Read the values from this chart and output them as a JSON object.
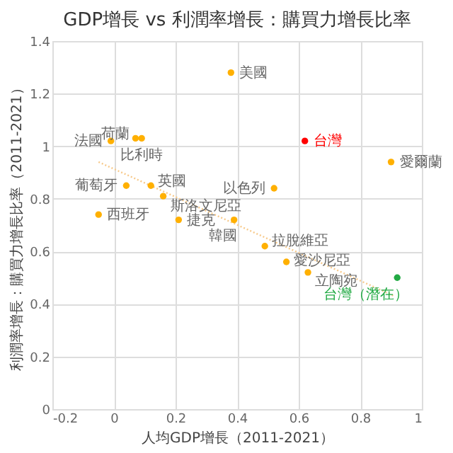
{
  "chart_data": {
    "type": "scatter",
    "title": "GDP增長 vs 利潤率增長：購買力增長比率",
    "xlabel": "人均GDP增長（2011-2021）",
    "ylabel": "利潤率增長：購買力增長比率（2011-2021）",
    "xlim": [
      -0.2,
      1
    ],
    "xticks": [
      -0.2,
      0,
      0.2,
      0.4,
      0.6,
      0.8,
      1
    ],
    "ylim": [
      0,
      1.4
    ],
    "yticks": [
      0,
      0.2,
      0.4,
      0.6,
      0.8,
      1,
      1.2,
      1.4
    ],
    "grid": true,
    "series": [
      {
        "color": "#ffb000",
        "marker": "circle",
        "x": [
          0.38,
          -0.01,
          0.07,
          0.09,
          0.04,
          0.12,
          0.16,
          -0.05,
          0.21,
          0.52,
          0.39,
          0.49,
          0.9,
          0.56,
          0.63
        ],
        "values": [
          1.28,
          1.02,
          1.03,
          1.03,
          0.85,
          0.85,
          0.81,
          0.74,
          0.72,
          0.84,
          0.72,
          0.62,
          0.94,
          0.56,
          0.52
        ]
      },
      {
        "color": "#ff0000",
        "marker": "circle",
        "x": [
          0.62
        ],
        "values": [
          1.02
        ]
      },
      {
        "color": "#22aa44",
        "marker": "circle",
        "x": [
          0.92
        ],
        "values": [
          0.5
        ]
      },
      {
        "type": "line",
        "color": "#f7c98a",
        "line_style": "dotted",
        "x": [
          -0.05,
          0.91
        ],
        "values": [
          0.94,
          0.43
        ]
      }
    ],
    "annotations": [
      {
        "text": "美國",
        "x": 0.38,
        "y": 1.28
      },
      {
        "text": "法國",
        "x": -0.01,
        "y": 1.02
      },
      {
        "text": "荷蘭",
        "x": 0.07,
        "y": 1.03
      },
      {
        "text": "比利時",
        "x": 0.09,
        "y": 1.03
      },
      {
        "text": "台灣",
        "x": 0.62,
        "y": 1.02
      },
      {
        "text": "葡萄牙",
        "x": 0.04,
        "y": 0.85
      },
      {
        "text": "英國",
        "x": 0.12,
        "y": 0.85
      },
      {
        "text": "斯洛文尼亞",
        "x": 0.16,
        "y": 0.81
      },
      {
        "text": "西班牙",
        "x": -0.05,
        "y": 0.74
      },
      {
        "text": "捷克",
        "x": 0.21,
        "y": 0.72
      },
      {
        "text": "以色列",
        "x": 0.52,
        "y": 0.84
      },
      {
        "text": "韓國",
        "x": 0.39,
        "y": 0.72
      },
      {
        "text": "拉脫維亞",
        "x": 0.49,
        "y": 0.62
      },
      {
        "text": "愛爾蘭",
        "x": 0.9,
        "y": 0.94
      },
      {
        "text": "愛沙尼亞",
        "x": 0.56,
        "y": 0.56
      },
      {
        "text": "立陶宛",
        "x": 0.63,
        "y": 0.52
      },
      {
        "text": "台灣（潛在）",
        "x": 0.92,
        "y": 0.5
      }
    ]
  }
}
